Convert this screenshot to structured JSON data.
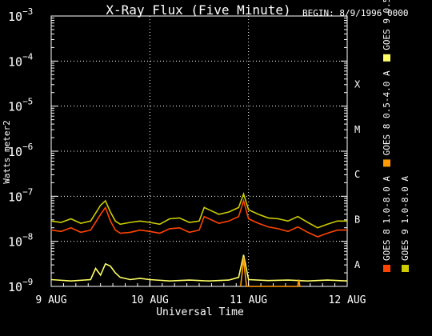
{
  "chart_data": {
    "type": "line",
    "title": "X-Ray Flux (Five Minute)",
    "begin_label": "BEGIN: 8/9/1996 0000",
    "ylabel": "Watts meter2",
    "xlabel": "Universal Time",
    "y_scale": "log",
    "ylim_exponents": [
      -9,
      -3
    ],
    "y_ticks": [
      {
        "base": "10",
        "exp": "−3",
        "value": -3
      },
      {
        "base": "10",
        "exp": "−4",
        "value": -4
      },
      {
        "base": "10",
        "exp": "−5",
        "value": -5
      },
      {
        "base": "10",
        "exp": "−6",
        "value": -6
      },
      {
        "base": "10",
        "exp": "−7",
        "value": -7
      },
      {
        "base": "10",
        "exp": "−8",
        "value": -8
      },
      {
        "base": "10",
        "exp": "−9",
        "value": -9
      }
    ],
    "x_range_days": [
      0,
      3
    ],
    "x_ticks": [
      {
        "label": "9 AUG",
        "day": 0
      },
      {
        "label": "10 AUG",
        "day": 1
      },
      {
        "label": "11 AUG",
        "day": 2
      },
      {
        "label": "12 AUG",
        "day": 3
      }
    ],
    "vertical_gridlines_days": [
      1,
      2
    ],
    "horizontal_gridlines_exponents": [
      -4,
      -5,
      -6,
      -7,
      -8
    ],
    "flare_classes": [
      {
        "label": "X",
        "exp": -4.5
      },
      {
        "label": "M",
        "exp": -5.5
      },
      {
        "label": "C",
        "exp": -6.5
      },
      {
        "label": "B",
        "exp": -7.5
      },
      {
        "label": "A",
        "exp": -8.5
      }
    ],
    "legend_right": [
      {
        "label": "GOES 8 1.0-8.0 A",
        "color": "#ff4400"
      },
      {
        "label": "GOES 8 0.5-4.0 A",
        "color": "#ff9900"
      },
      {
        "label": "GOES 9 0.5-4.0 A",
        "color": "#ffff66"
      }
    ],
    "legend_far_right": [
      {
        "label": "GOES 9 1.0-8.0 A",
        "color": "#cccc00"
      }
    ],
    "series": [
      {
        "name": "GOES 9 1.0-8.0 A",
        "color": "#cccc00",
        "x": [
          0,
          0.1,
          0.2,
          0.3,
          0.4,
          0.5,
          0.55,
          0.6,
          0.65,
          0.7,
          0.8,
          0.9,
          1.0,
          1.1,
          1.2,
          1.3,
          1.4,
          1.5,
          1.55,
          1.6,
          1.7,
          1.8,
          1.9,
          1.95,
          2.0,
          2.1,
          2.2,
          2.3,
          2.4,
          2.5,
          2.6,
          2.7,
          2.8,
          2.9,
          3.0
        ],
        "y": [
          -7.55,
          -7.58,
          -7.5,
          -7.6,
          -7.55,
          -7.2,
          -7.1,
          -7.35,
          -7.55,
          -7.62,
          -7.58,
          -7.55,
          -7.58,
          -7.62,
          -7.5,
          -7.48,
          -7.58,
          -7.55,
          -7.25,
          -7.3,
          -7.4,
          -7.35,
          -7.25,
          -6.95,
          -7.3,
          -7.4,
          -7.48,
          -7.5,
          -7.55,
          -7.45,
          -7.58,
          -7.7,
          -7.62,
          -7.55,
          -7.55
        ]
      },
      {
        "name": "GOES 8 1.0-8.0 A",
        "color": "#ff4400",
        "x": [
          0,
          0.1,
          0.2,
          0.3,
          0.4,
          0.5,
          0.55,
          0.6,
          0.65,
          0.7,
          0.8,
          0.9,
          1.0,
          1.1,
          1.2,
          1.3,
          1.4,
          1.5,
          1.55,
          1.6,
          1.7,
          1.8,
          1.9,
          1.95,
          2.0,
          2.1,
          2.2,
          2.3,
          2.4,
          2.5,
          2.6,
          2.7,
          2.8,
          2.9,
          3.0
        ],
        "y": [
          -7.75,
          -7.78,
          -7.7,
          -7.8,
          -7.75,
          -7.4,
          -7.25,
          -7.55,
          -7.75,
          -7.82,
          -7.8,
          -7.75,
          -7.78,
          -7.82,
          -7.72,
          -7.7,
          -7.8,
          -7.75,
          -7.45,
          -7.5,
          -7.6,
          -7.55,
          -7.45,
          -7.1,
          -7.5,
          -7.6,
          -7.68,
          -7.72,
          -7.78,
          -7.68,
          -7.8,
          -7.9,
          -7.82,
          -7.75,
          -7.75
        ]
      },
      {
        "name": "GOES 9 0.5-4.0 A",
        "color": "#ffff66",
        "x": [
          0,
          0.2,
          0.4,
          0.45,
          0.5,
          0.55,
          0.6,
          0.65,
          0.7,
          0.8,
          0.9,
          1.0,
          1.2,
          1.4,
          1.6,
          1.8,
          1.9,
          1.95,
          2.0,
          2.2,
          2.4,
          2.6,
          2.8,
          3.0
        ],
        "y": [
          -8.85,
          -8.88,
          -8.85,
          -8.6,
          -8.75,
          -8.5,
          -8.55,
          -8.7,
          -8.8,
          -8.85,
          -8.82,
          -8.85,
          -8.88,
          -8.86,
          -8.88,
          -8.86,
          -8.8,
          -8.3,
          -8.85,
          -8.87,
          -8.86,
          -8.88,
          -8.86,
          -8.88
        ]
      },
      {
        "name": "GOES 8 0.5-4.0 A",
        "color": "#ff9900",
        "x": [
          1.92,
          1.94,
          1.95,
          1.96,
          1.98,
          2.5,
          2.51,
          2.52,
          2.53
        ],
        "y": [
          -9.0,
          -8.6,
          -8.35,
          -8.6,
          -9.0,
          -9.0,
          -8.85,
          -9.0,
          -9.0
        ]
      }
    ]
  }
}
